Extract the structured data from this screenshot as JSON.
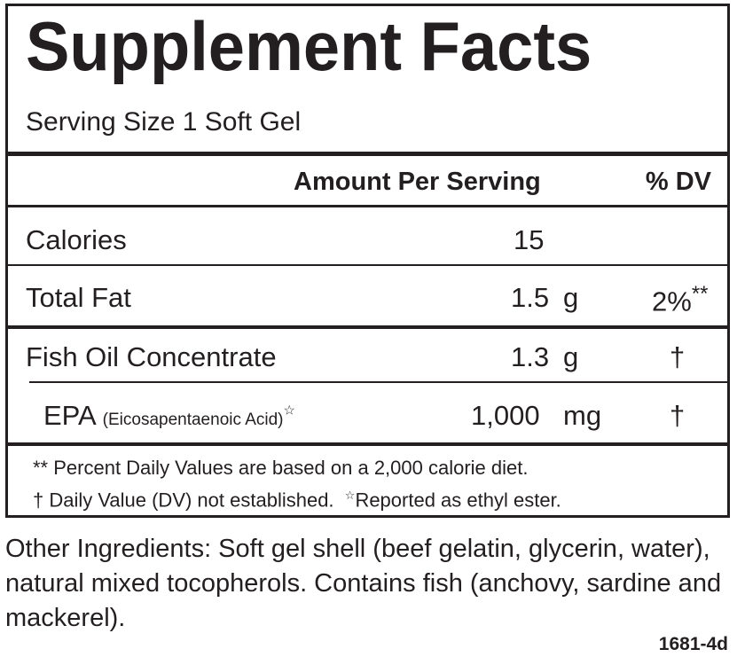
{
  "label": {
    "title": "Supplement Facts",
    "serving_size": "Serving Size 1 Soft Gel",
    "header_amount": "Amount Per Serving",
    "header_dv": "% DV",
    "rows": [
      {
        "name": "Calories",
        "sub": "",
        "amount": "15",
        "unit": "",
        "dv": ""
      },
      {
        "name": "Total Fat",
        "sub": "",
        "amount": "1.5",
        "unit": "g",
        "dv": "2%",
        "dv_mark": "**"
      },
      {
        "name": "Fish Oil Concentrate",
        "sub": "",
        "amount": "1.3",
        "unit": "g",
        "dv": "†"
      },
      {
        "name": "EPA",
        "sub": "(Eicosapentaenoic Acid)",
        "sub_mark": "☆",
        "amount": "1,000",
        "unit": "mg",
        "dv": "†"
      }
    ],
    "footnote_1": "** Percent Daily Values are based on a 2,000 calorie diet.",
    "footnote_2_a": "† Daily Value (DV) not established.",
    "footnote_2_mark": "☆",
    "footnote_2_b": "Reported as ethyl ester."
  },
  "other_ingredients": "Other Ingredients: Soft gel shell (beef gelatin, glycerin, water), natural mixed tocopherols. Contains fish (anchovy, sardine and mackerel).",
  "product_code": "1681-4d"
}
